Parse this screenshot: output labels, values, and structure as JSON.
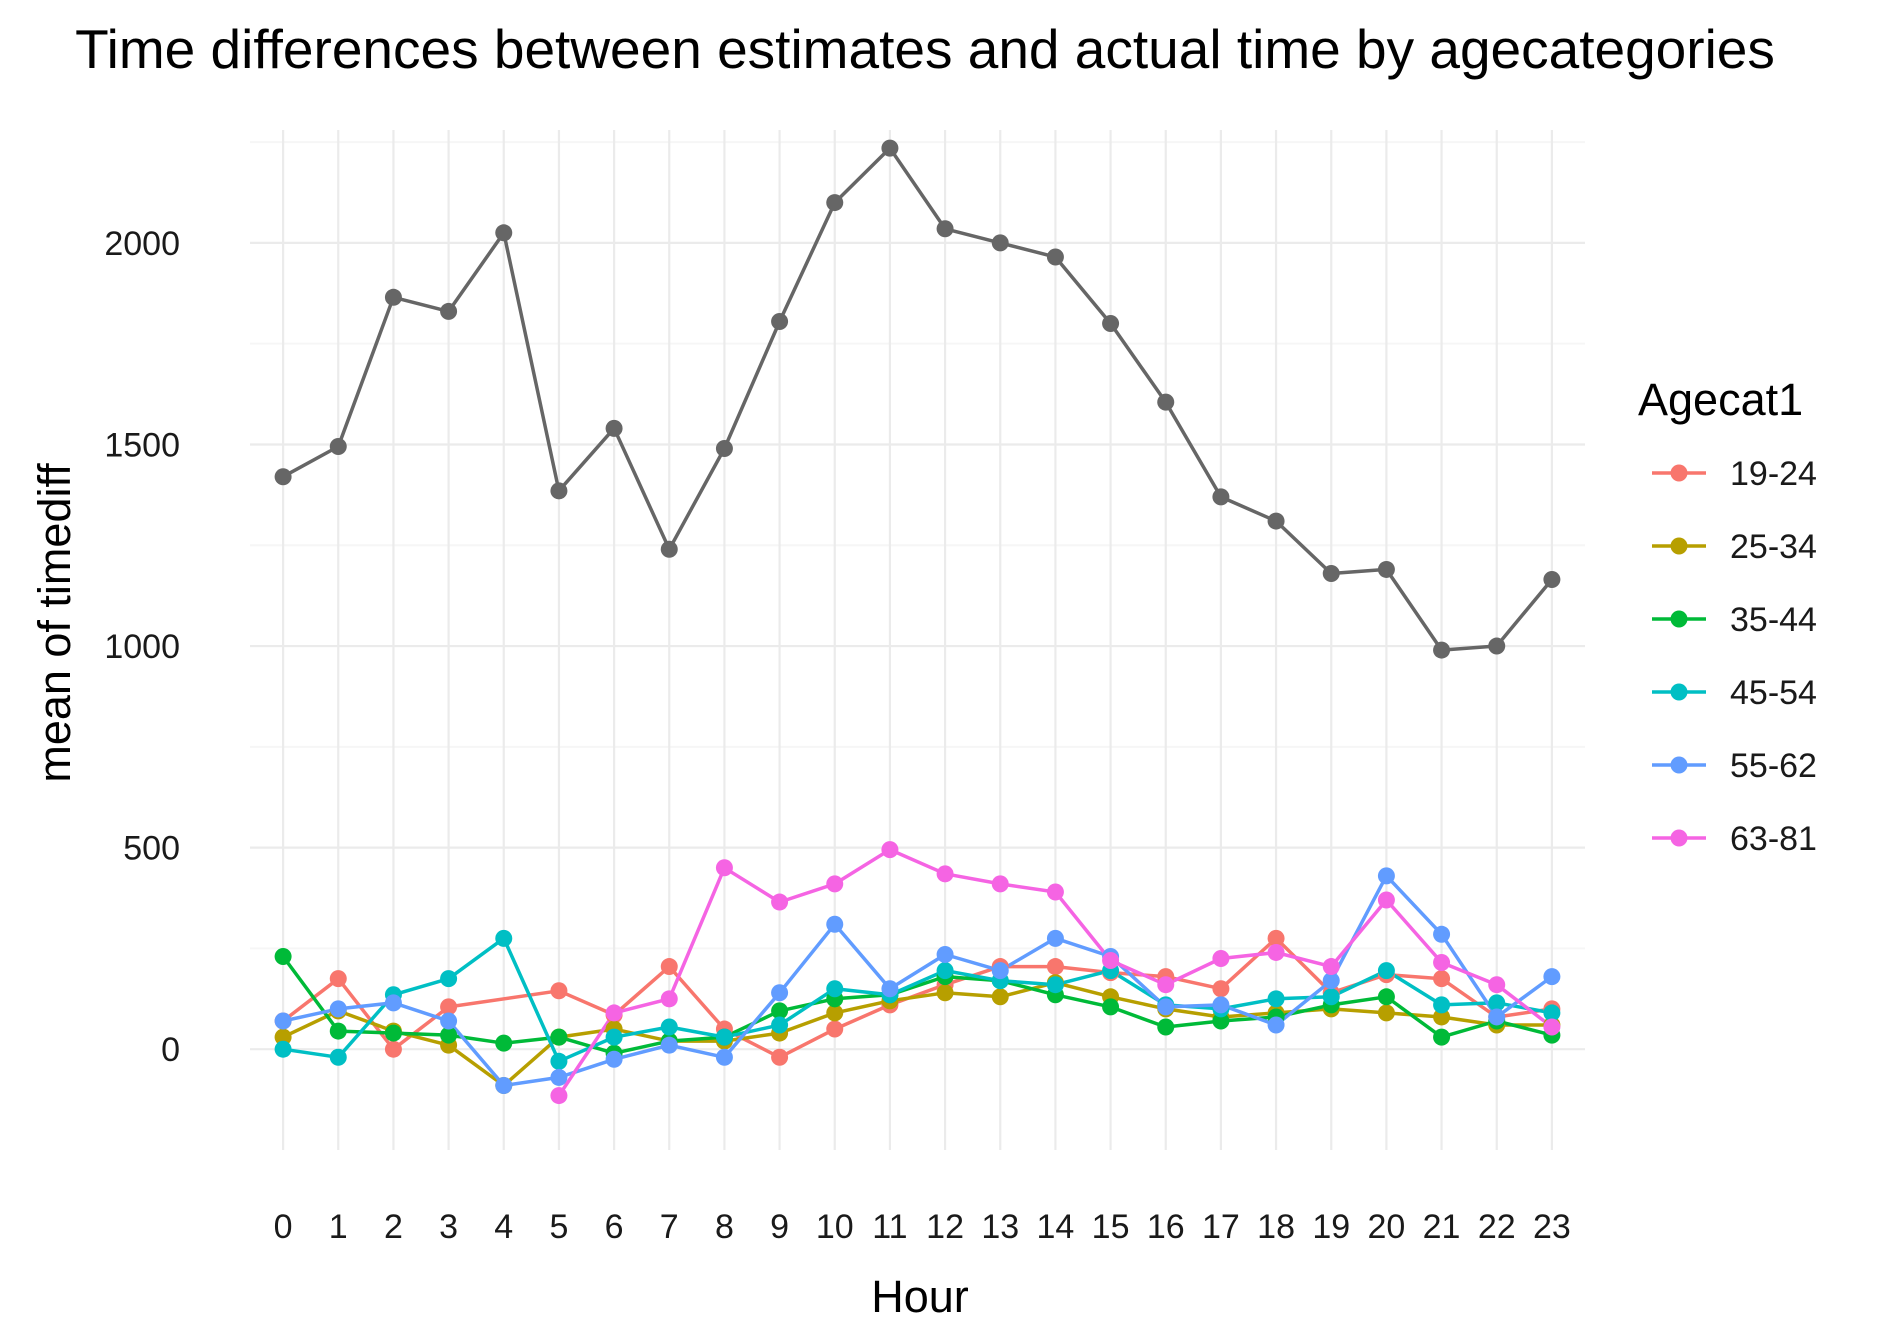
{
  "chart_data": {
    "type": "line",
    "title": "Time differences between estimates and actual time by agecategories",
    "xlabel": "Hour",
    "ylabel": "mean of timediff",
    "x": [
      0,
      1,
      2,
      3,
      4,
      5,
      6,
      7,
      8,
      9,
      10,
      11,
      12,
      13,
      14,
      15,
      16,
      17,
      18,
      19,
      20,
      21,
      22,
      23
    ],
    "x_tick_labels": [
      "0",
      "1",
      "2",
      "3",
      "4",
      "5",
      "6",
      "7",
      "8",
      "9",
      "10",
      "11",
      "12",
      "13",
      "14",
      "15",
      "16",
      "17",
      "18",
      "19",
      "20",
      "21",
      "22",
      "23"
    ],
    "y_ticks": [
      0,
      500,
      1000,
      1500,
      2000
    ],
    "y_tick_labels": [
      "0",
      "500",
      "1000",
      "1500",
      "2000"
    ],
    "ylim": [
      -250,
      2280
    ],
    "xlim": [
      -0.6,
      23.6
    ],
    "grid": true,
    "legend": {
      "title": "Agecat1",
      "position": "right"
    },
    "series": [
      {
        "name": "",
        "legend": false,
        "color": "#666666",
        "values": [
          1420,
          1495,
          1865,
          1830,
          2025,
          1385,
          1540,
          1240,
          1490,
          1805,
          2100,
          2235,
          2035,
          2000,
          1965,
          1800,
          1605,
          1370,
          1310,
          1180,
          1190,
          990,
          1000,
          1165
        ]
      },
      {
        "name": "19-24",
        "color": "#F8766D",
        "points": [
          [
            0,
            70
          ],
          [
            1,
            175
          ],
          [
            2,
            0
          ],
          [
            3,
            105
          ],
          [
            5,
            145
          ],
          [
            6,
            85
          ],
          [
            7,
            205
          ],
          [
            8,
            50
          ],
          [
            9,
            -20
          ],
          [
            10,
            50
          ],
          [
            11,
            110
          ],
          [
            12,
            160
          ],
          [
            13,
            205
          ],
          [
            14,
            205
          ],
          [
            15,
            190
          ],
          [
            16,
            180
          ],
          [
            17,
            150
          ],
          [
            18,
            275
          ],
          [
            19,
            140
          ],
          [
            20,
            185
          ],
          [
            21,
            175
          ],
          [
            22,
            80
          ],
          [
            23,
            100
          ]
        ]
      },
      {
        "name": "25-34",
        "color": "#B79F00",
        "values": [
          30,
          95,
          45,
          10,
          -90,
          30,
          50,
          20,
          20,
          40,
          90,
          120,
          140,
          130,
          165,
          130,
          100,
          80,
          90,
          100,
          90,
          80,
          60,
          60
        ]
      },
      {
        "name": "35-44",
        "color": "#00BA38",
        "values": [
          230,
          45,
          40,
          35,
          15,
          30,
          -10,
          20,
          30,
          95,
          125,
          135,
          180,
          170,
          135,
          105,
          55,
          70,
          80,
          110,
          130,
          30,
          70,
          35
        ]
      },
      {
        "name": "45-54",
        "color": "#00BFC4",
        "values": [
          0,
          -20,
          135,
          175,
          275,
          -30,
          30,
          55,
          30,
          60,
          150,
          135,
          195,
          170,
          160,
          195,
          110,
          100,
          125,
          130,
          195,
          110,
          115,
          90
        ]
      },
      {
        "name": "55-62",
        "color": "#619CFF",
        "values": [
          70,
          100,
          115,
          70,
          -90,
          -70,
          -25,
          10,
          -20,
          140,
          310,
          150,
          235,
          195,
          275,
          230,
          105,
          110,
          60,
          170,
          430,
          285,
          80,
          180
        ]
      },
      {
        "name": "63-81",
        "color": "#F564E3",
        "points": [
          [
            5,
            -115
          ],
          [
            6,
            90
          ],
          [
            7,
            125
          ],
          [
            8,
            450
          ],
          [
            9,
            365
          ],
          [
            10,
            410
          ],
          [
            11,
            495
          ],
          [
            12,
            435
          ],
          [
            13,
            410
          ],
          [
            14,
            390
          ],
          [
            15,
            220
          ],
          [
            16,
            160
          ],
          [
            17,
            225
          ],
          [
            18,
            240
          ],
          [
            19,
            205
          ],
          [
            20,
            370
          ],
          [
            21,
            215
          ],
          [
            22,
            160
          ],
          [
            23,
            55
          ]
        ]
      }
    ]
  }
}
